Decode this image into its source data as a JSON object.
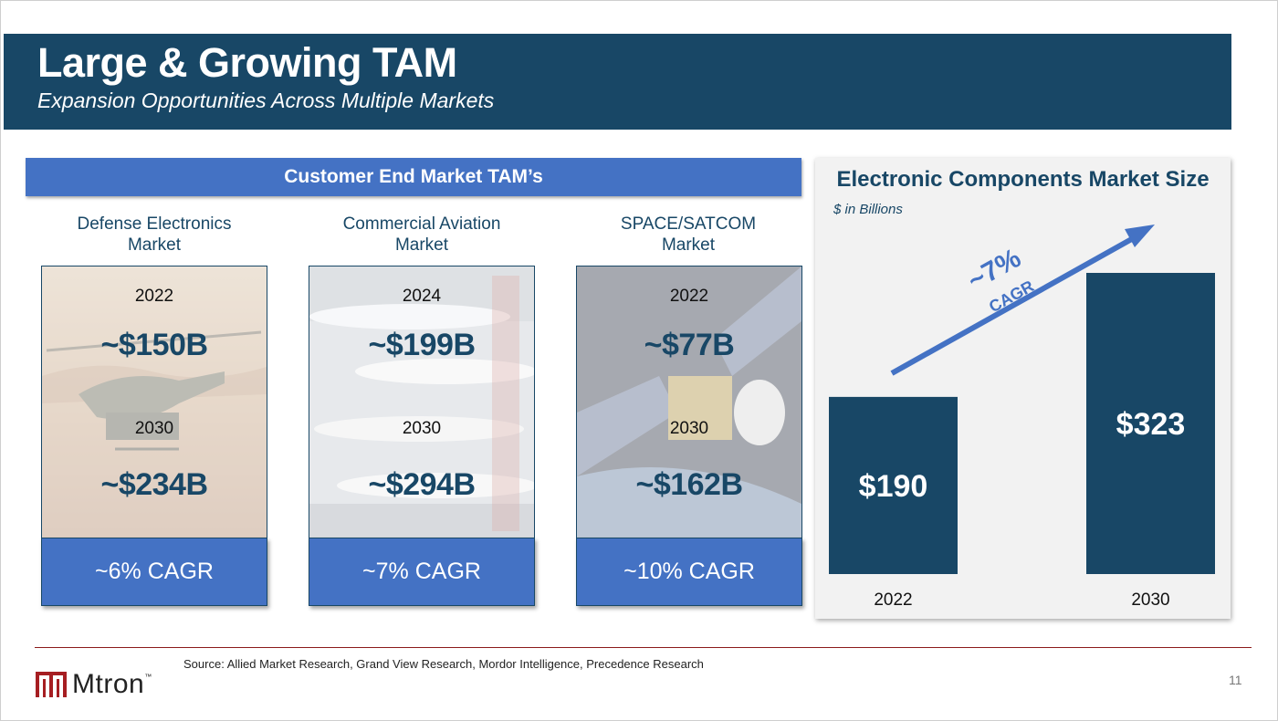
{
  "header": {
    "title": "Large & Growing TAM",
    "subtitle": "Expansion Opportunities Across Multiple Markets"
  },
  "tam_section": {
    "banner": "Customer End Market TAM’s",
    "markets": [
      {
        "label_line1": "Defense Electronics",
        "label_line2": "Market",
        "year1": "2022",
        "value1": "~$150B",
        "year2": "2030",
        "value2": "~$234B",
        "cagr": "~6% CAGR"
      },
      {
        "label_line1": "Commercial Aviation",
        "label_line2": "Market",
        "year1": "2024",
        "value1": "~$199B",
        "year2": "2030",
        "value2": "~$294B",
        "cagr": "~7% CAGR"
      },
      {
        "label_line1": "SPACE/SATCOM",
        "label_line2": "Market",
        "year1": "2022",
        "value1": "~$77B",
        "year2": "2030",
        "value2": "~$162B",
        "cagr": "~10% CAGR"
      }
    ]
  },
  "chart_data": {
    "type": "bar",
    "title": "Electronic Components Market Size",
    "subtitle": "$ in Billions",
    "categories": [
      "2022",
      "2030"
    ],
    "values": [
      190,
      323
    ],
    "value_labels": [
      "$190",
      "$323"
    ],
    "annotation_line1": "~7%",
    "annotation_line2": "CAGR",
    "colors": {
      "bar": "#184766",
      "arrow": "#4472c4"
    }
  },
  "footer": {
    "logo_text": "Mtron",
    "logo_tm": "™",
    "source": "Source: Allied Market Research, Grand View Research, Mordor Intelligence, Precedence Research",
    "page_number": "11"
  },
  "colors": {
    "primary": "#184766",
    "accent": "#4472c4",
    "divider": "#8b1a1a"
  }
}
